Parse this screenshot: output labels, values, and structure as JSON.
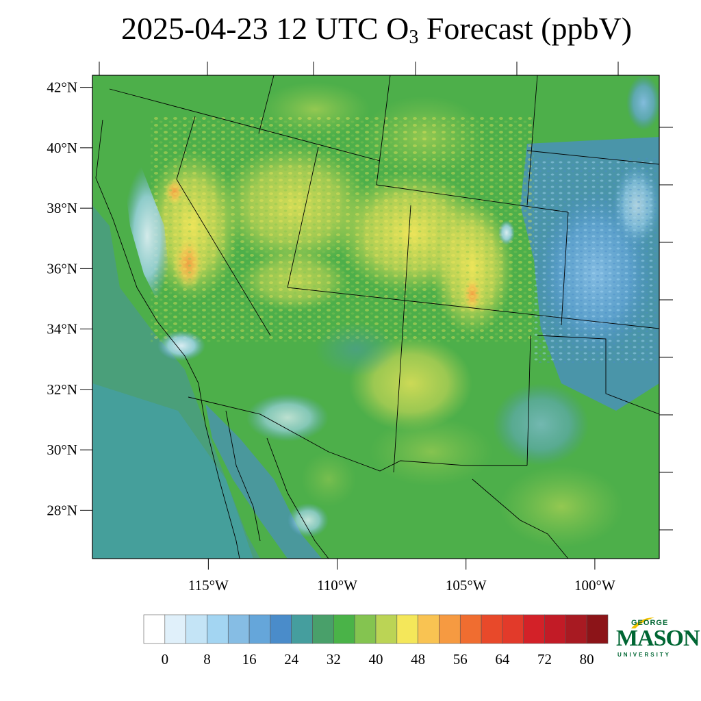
{
  "title": {
    "main": "2025-04-23 12 UTC O",
    "subscript": "3",
    "suffix": " Forecast (ppbV)"
  },
  "map": {
    "lon_range": [
      -119.5,
      -97.5
    ],
    "lat_range": [
      26.4,
      42.4
    ],
    "lat_ticks": [
      {
        "value": 42,
        "label": "42°N"
      },
      {
        "value": 40,
        "label": "40°N"
      },
      {
        "value": 38,
        "label": "38°N"
      },
      {
        "value": 36,
        "label": "36°N"
      },
      {
        "value": 34,
        "label": "34°N"
      },
      {
        "value": 32,
        "label": "32°N"
      },
      {
        "value": 30,
        "label": "30°N"
      },
      {
        "value": 28,
        "label": "28°N"
      }
    ],
    "lon_ticks": [
      {
        "value": -115,
        "label": "115°W"
      },
      {
        "value": -110,
        "label": "110°W"
      },
      {
        "value": -105,
        "label": "105°W"
      },
      {
        "value": -100,
        "label": "100°W"
      }
    ],
    "ocean_color": "#52ae45",
    "land_base_color": "#4daf4a"
  },
  "colorbar": {
    "colors": [
      "#ffffff",
      "#e0f0fa",
      "#c4e4f6",
      "#a3d5f2",
      "#86bde4",
      "#65a6da",
      "#4a8cca",
      "#459e9e",
      "#49a06a",
      "#4ab348",
      "#84c450",
      "#bbd455",
      "#f4e75a",
      "#f9c352",
      "#f69a41",
      "#f06d30",
      "#e8492a",
      "#e23a2a",
      "#d32128",
      "#c21b26",
      "#a81a22",
      "#8c1418"
    ],
    "labels": [
      {
        "index": 1,
        "text": "0"
      },
      {
        "index": 3,
        "text": "8"
      },
      {
        "index": 5,
        "text": "16"
      },
      {
        "index": 7,
        "text": "24"
      },
      {
        "index": 9,
        "text": "32"
      },
      {
        "index": 11,
        "text": "40"
      },
      {
        "index": 13,
        "text": "48"
      },
      {
        "index": 15,
        "text": "56"
      },
      {
        "index": 17,
        "text": "64"
      },
      {
        "index": 19,
        "text": "72"
      },
      {
        "index": 21,
        "text": "80"
      }
    ]
  },
  "logo": {
    "line1": "GEORGE",
    "line2": "MASON",
    "line3": "UNIVERSITY",
    "color": "#006633",
    "accent": "#f2c200"
  }
}
